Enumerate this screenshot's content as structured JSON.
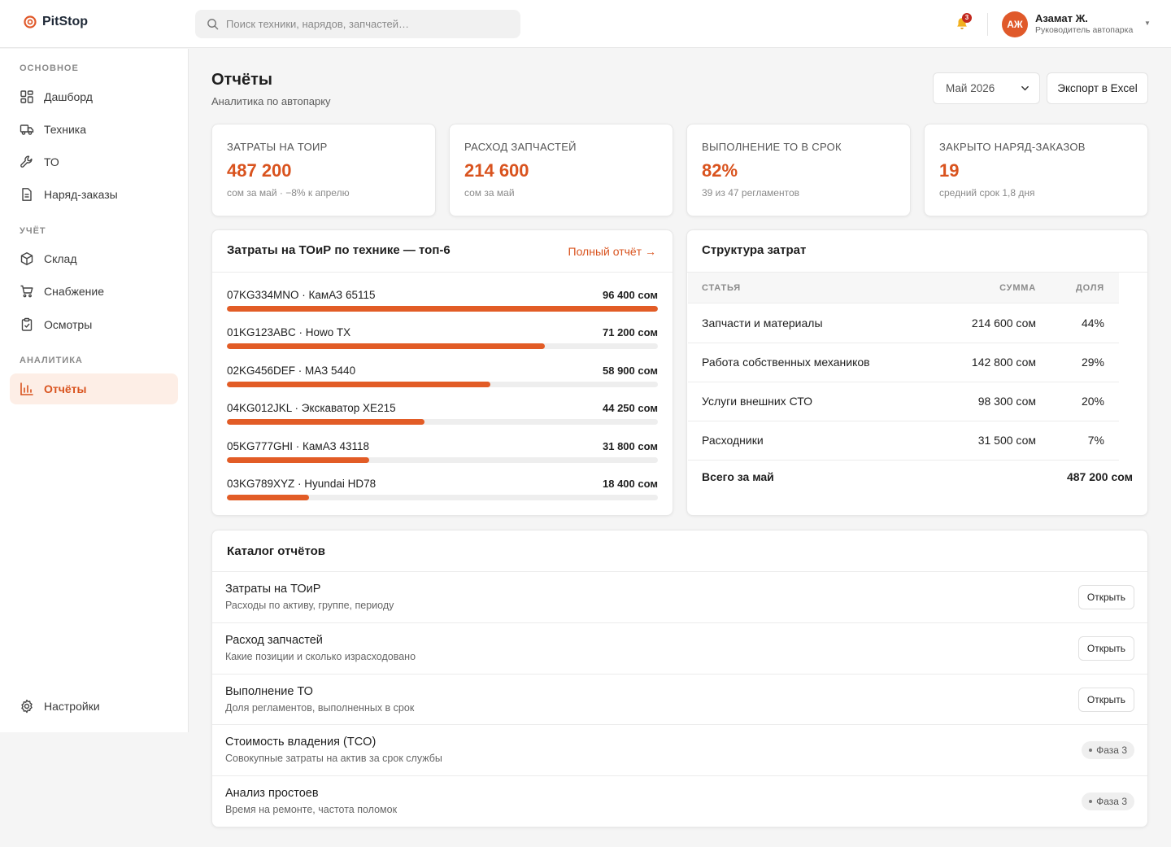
{
  "app": {
    "name": "PitStop"
  },
  "search": {
    "placeholder": "Поиск техники, нарядов, запчастей…"
  },
  "notifications": {
    "count": "3"
  },
  "user": {
    "initials": "АЖ",
    "name": "Азамат Ж.",
    "role": "Руководитель автопарка"
  },
  "sidebar": {
    "sections": [
      {
        "title": "ОСНОВНОЕ"
      },
      {
        "title": "УЧЁТ"
      },
      {
        "title": "АНАЛИТИКА"
      }
    ],
    "items": [
      {
        "label": "Дашборд",
        "icon": "dashboard-icon"
      },
      {
        "label": "Техника",
        "icon": "truck-icon"
      },
      {
        "label": "ТО",
        "icon": "wrench-icon"
      },
      {
        "label": "Наряд-заказы",
        "icon": "document-icon"
      },
      {
        "label": "Склад",
        "icon": "box-icon"
      },
      {
        "label": "Снабжение",
        "icon": "cart-icon"
      },
      {
        "label": "Осмотры",
        "icon": "clipboard-icon"
      },
      {
        "label": "Отчёты",
        "icon": "bar-chart-icon",
        "active": true
      }
    ],
    "settings": {
      "label": "Настройки",
      "icon": "gear-icon"
    }
  },
  "page": {
    "title": "Отчёты",
    "subtitle": "Аналитика по автопарку",
    "period": "Май 2026",
    "export_label": "Экспорт в Excel"
  },
  "kpis": [
    {
      "label": "ЗАТРАТЫ НА ТОИР",
      "value": "487 200",
      "note": "сом за май · −8% к апрелю"
    },
    {
      "label": "РАСХОД ЗАПЧАСТЕЙ",
      "value": "214 600",
      "note": "сом за май"
    },
    {
      "label": "ВЫПОЛНЕНИЕ ТО В СРОК",
      "value": "82%",
      "note": "39 из 47 регламентов"
    },
    {
      "label": "ЗАКРЫТО НАРЯД-ЗАКАЗОВ",
      "value": "19",
      "note": "средний срок 1,8 дня"
    }
  ],
  "top_costs": {
    "title": "Затраты на ТОиР по технике — топ-6",
    "link": "Полный отчёт →",
    "accent": "#e25c26",
    "max": 96400,
    "rows": [
      {
        "name": "07KG334MNO · КамАЗ 65115",
        "value": 96400,
        "label": "96 400 сом"
      },
      {
        "name": "01KG123ABC · Howo TX",
        "value": 71200,
        "label": "71 200 сом"
      },
      {
        "name": "02KG456DEF · МАЗ 5440",
        "value": 58900,
        "label": "58 900 сом"
      },
      {
        "name": "04KG012JKL · Экскаватор XE215",
        "value": 44250,
        "label": "44 250 сом"
      },
      {
        "name": "05KG777GHI · КамАЗ 43118",
        "value": 31800,
        "label": "31 800 сом"
      },
      {
        "name": "03KG789XYZ · Hyundai HD78",
        "value": 18400,
        "label": "18 400 сом"
      }
    ]
  },
  "structure": {
    "title": "Структура затрат",
    "headers": {
      "item": "СТАТЬЯ",
      "sum": "СУММА",
      "share": "ДОЛЯ"
    },
    "rows": [
      {
        "item": "Запчасти и материалы",
        "sum": "214 600 сом",
        "share": "44%"
      },
      {
        "item": "Работа собственных механиков",
        "sum": "142 800 сом",
        "share": "29%"
      },
      {
        "item": "Услуги внешних СТО",
        "sum": "98 300 сом",
        "share": "20%"
      },
      {
        "item": "Расходники",
        "sum": "31 500 сом",
        "share": "7%"
      }
    ],
    "total_label": "Всего за май",
    "total_value": "487 200 сом"
  },
  "catalog": {
    "title": "Каталог отчётов",
    "open_label": "Открыть",
    "rows": [
      {
        "name": "Затраты на ТОиР",
        "desc": "Расходы по активу, группе, периоду",
        "action": "open"
      },
      {
        "name": "Расход запчастей",
        "desc": "Какие позиции и сколько израсходовано",
        "action": "open"
      },
      {
        "name": "Выполнение ТО",
        "desc": "Доля регламентов, выполненных в срок",
        "action": "open"
      },
      {
        "name": "Стоимость владения (TCO)",
        "desc": "Совокупные затраты на актив за срок службы",
        "action": "phase",
        "badge": "Фаза 3"
      },
      {
        "name": "Анализ простоев",
        "desc": "Время на ремонте, частота поломок",
        "action": "phase",
        "badge": "Фаза 3"
      }
    ]
  }
}
